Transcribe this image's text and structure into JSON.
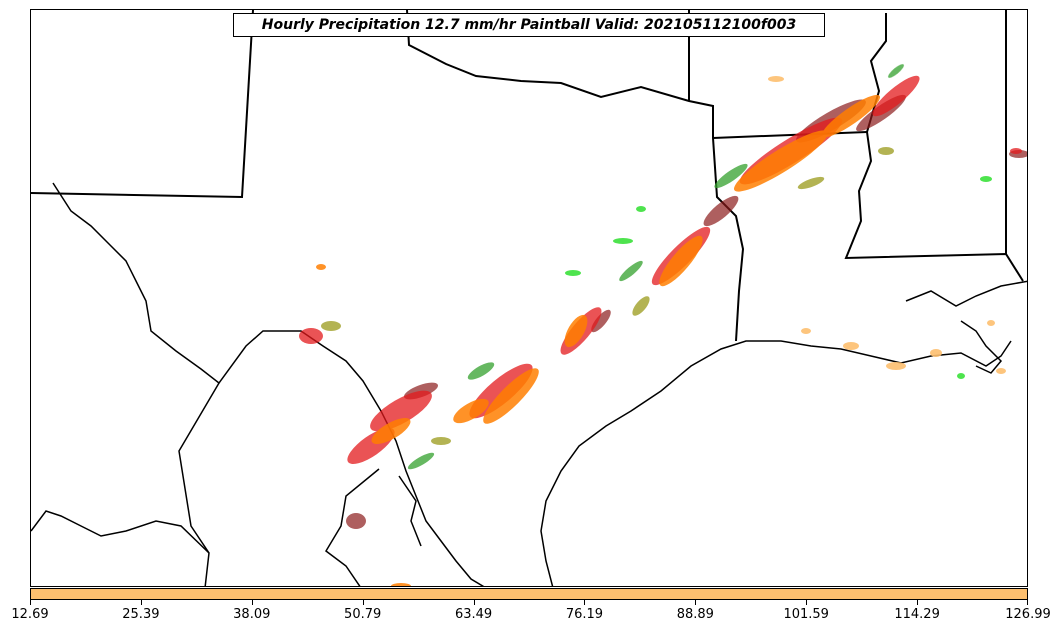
{
  "title": "Hourly Precipitation 12.7 mm/hr Paintball Valid: 202105112100f003",
  "colorbar": {
    "color": "#fdbf6f",
    "ticks": [
      "12.69",
      "25.39",
      "38.09",
      "50.79",
      "63.49",
      "76.19",
      "88.89",
      "101.59",
      "114.29",
      "126.99"
    ]
  },
  "colors": {
    "red": "#e31a1c",
    "orange": "#ff7f00",
    "light_orange": "#fdbf6f",
    "dark_red": "#8b1a1a",
    "green": "#33a02c",
    "light_green": "#22dd22",
    "olive": "#9a9a1a",
    "dark_green": "#2f4f2f",
    "boundary": "#000000"
  }
}
